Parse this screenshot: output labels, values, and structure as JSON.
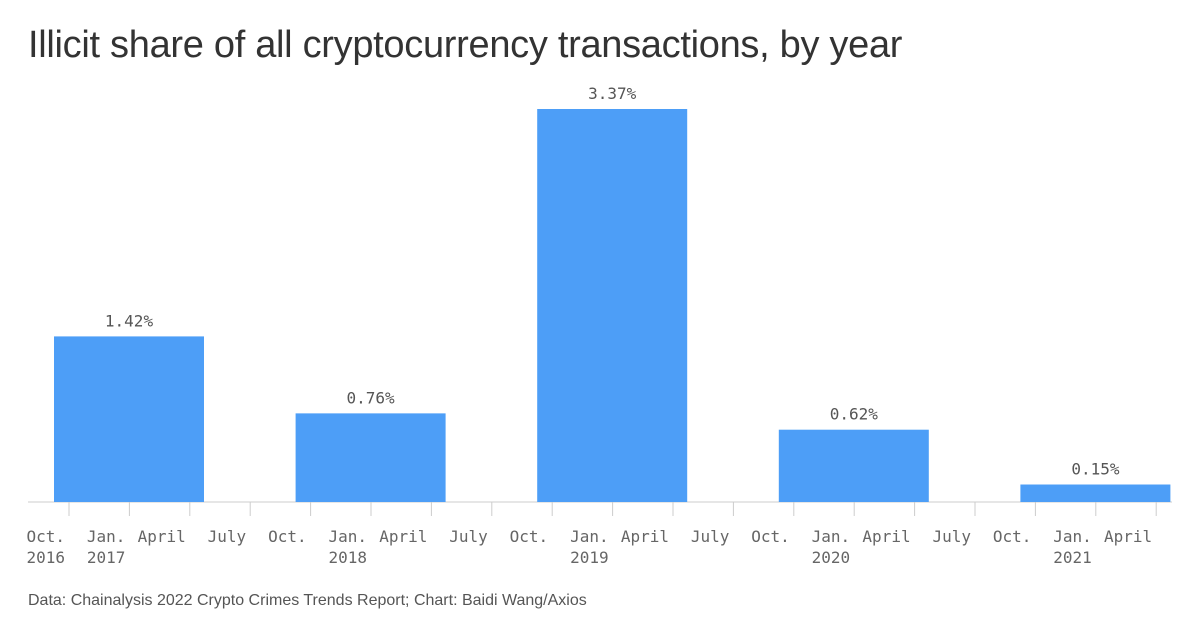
{
  "chart_data": {
    "type": "bar",
    "title": "Illicit share of all cryptocurrency transactions, by year",
    "xlabel": "",
    "ylabel": "",
    "ylim": [
      0,
      3.37
    ],
    "bar_color": "#4d9ef7",
    "axis_color": "#cccccc",
    "categories": [
      "2017",
      "2018",
      "2019",
      "2020",
      "2021"
    ],
    "values": [
      1.42,
      0.76,
      3.37,
      0.62,
      0.15
    ],
    "data_labels": [
      "1.42%",
      "0.76%",
      "3.37%",
      "0.62%",
      "0.15%"
    ],
    "x_ticks": [
      {
        "month": "Oct.",
        "year": "2016"
      },
      {
        "month": "Jan.",
        "year": "2017"
      },
      {
        "month": "April",
        "year": ""
      },
      {
        "month": "July",
        "year": ""
      },
      {
        "month": "Oct.",
        "year": ""
      },
      {
        "month": "Jan.",
        "year": "2018"
      },
      {
        "month": "April",
        "year": ""
      },
      {
        "month": "July",
        "year": ""
      },
      {
        "month": "Oct.",
        "year": ""
      },
      {
        "month": "Jan.",
        "year": "2019"
      },
      {
        "month": "April",
        "year": ""
      },
      {
        "month": "July",
        "year": ""
      },
      {
        "month": "Oct.",
        "year": ""
      },
      {
        "month": "Jan.",
        "year": "2020"
      },
      {
        "month": "April",
        "year": ""
      },
      {
        "month": "July",
        "year": ""
      },
      {
        "month": "Oct.",
        "year": ""
      },
      {
        "month": "Jan.",
        "year": "2021"
      },
      {
        "month": "April",
        "year": ""
      }
    ],
    "source": "Data: Chainalysis 2022 Crypto Crimes Trends Report; Chart: Baidi Wang/Axios"
  }
}
